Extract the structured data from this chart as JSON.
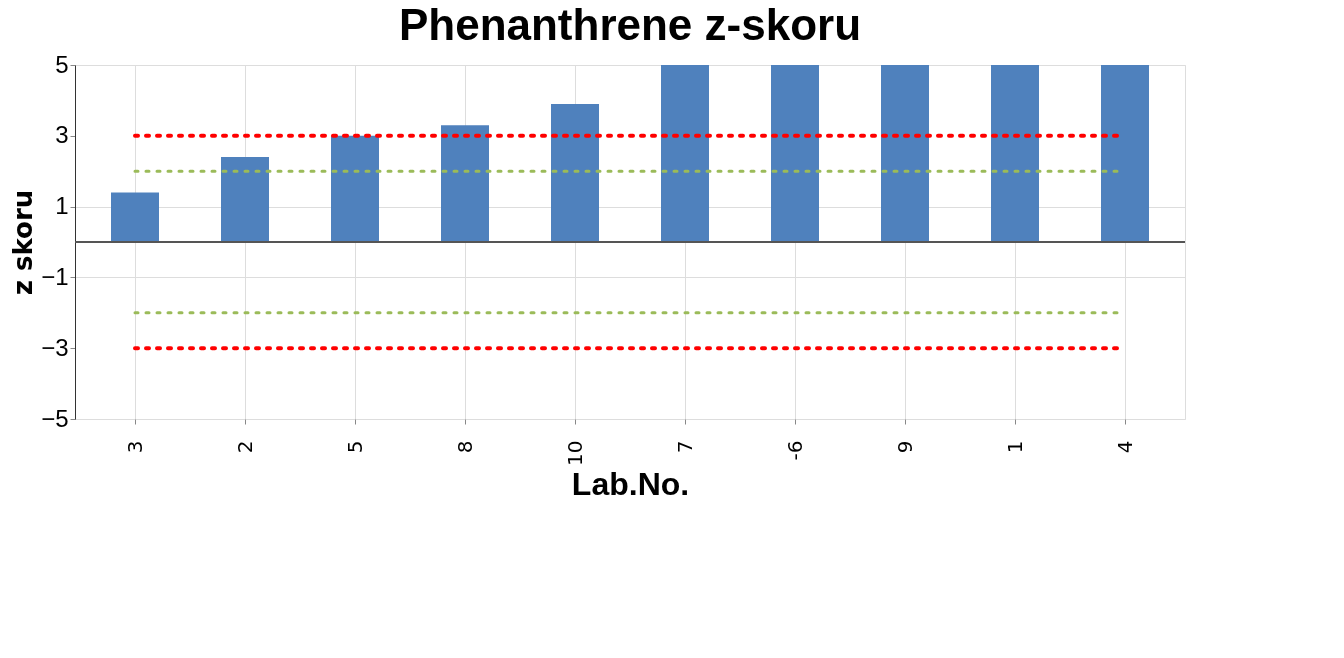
{
  "chart_data": {
    "type": "bar",
    "title": "Phenanthrene z-skoru",
    "xlabel": "Lab.No.",
    "ylabel": "z skoru",
    "categories": [
      "3",
      "2",
      "5",
      "8",
      "10",
      "7",
      "-6",
      "9",
      "1",
      "4"
    ],
    "values": [
      1.4,
      2.4,
      3.0,
      3.3,
      3.9,
      5,
      5,
      5,
      5,
      5
    ],
    "color": "#4f81bd",
    "ylim": [
      -5,
      5
    ],
    "yticks": [
      -5,
      -3,
      -1,
      1,
      3,
      5
    ],
    "grid": true,
    "ref_lines": [
      {
        "axis": "y",
        "value": 3,
        "color": "#ff0000",
        "line_style": "dotted"
      },
      {
        "axis": "y",
        "value": -3,
        "color": "#ff0000",
        "line_style": "dotted"
      },
      {
        "axis": "y",
        "value": 2,
        "color": "#9bbb59",
        "line_style": "dotted"
      },
      {
        "axis": "y",
        "value": -2,
        "color": "#9bbb59",
        "line_style": "dotted"
      }
    ]
  }
}
